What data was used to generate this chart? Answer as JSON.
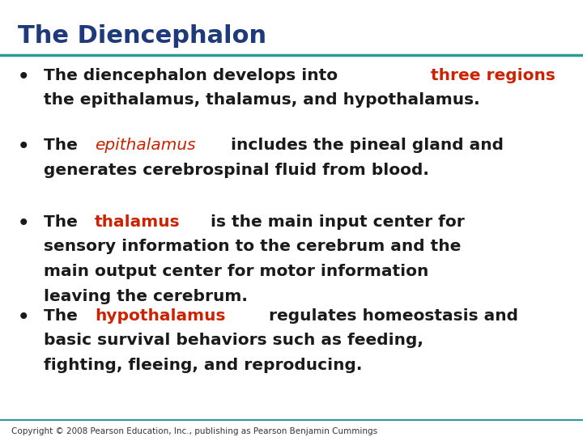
{
  "title": "The Diencephalon",
  "title_color": "#1F3A7A",
  "title_fontsize": 22,
  "line_color": "#2E9B9B",
  "bg_color": "#FFFFFF",
  "bullet_color": "#1a1a1a",
  "bullet_fontsize": 14.5,
  "copyright": "Copyright © 2008 Pearson Education, Inc., publishing as Pearson Benjamin Cummings",
  "copyright_fontsize": 7.5,
  "bullets": [
    {
      "segments": [
        {
          "text": "The diencephalon develops into ",
          "color": "#1a1a1a",
          "bold": true,
          "italic": false
        },
        {
          "text": "three regions",
          "color": "#CC2200",
          "bold": true,
          "italic": false
        },
        {
          "text": ":",
          "color": "#1a1a1a",
          "bold": true,
          "italic": false
        },
        {
          "text": "\nthe epithalamus, thalamus, and hypothalamus.",
          "color": "#1a1a1a",
          "bold": true,
          "italic": false
        }
      ]
    },
    {
      "segments": [
        {
          "text": "The ",
          "color": "#1a1a1a",
          "bold": true,
          "italic": false
        },
        {
          "text": "epithalamus",
          "color": "#CC2200",
          "bold": false,
          "italic": true
        },
        {
          "text": " includes the pineal gland and\ngenerates cerebrospinal fluid from blood.",
          "color": "#1a1a1a",
          "bold": true,
          "italic": false
        }
      ]
    },
    {
      "segments": [
        {
          "text": "The ",
          "color": "#1a1a1a",
          "bold": true,
          "italic": false
        },
        {
          "text": "thalamus",
          "color": "#CC2200",
          "bold": true,
          "italic": false
        },
        {
          "text": " is the main input center for\nsensory information to the cerebrum and the\nmain output center for motor information\nleaving the cerebrum.",
          "color": "#1a1a1a",
          "bold": true,
          "italic": false
        }
      ]
    },
    {
      "segments": [
        {
          "text": "The ",
          "color": "#1a1a1a",
          "bold": true,
          "italic": false
        },
        {
          "text": "hypothalamus",
          "color": "#CC2200",
          "bold": true,
          "italic": false
        },
        {
          "text": " regulates homeostasis and\nbasic survival behaviors such as feeding,\nfighting, fleeing, and reproducing.",
          "color": "#1a1a1a",
          "bold": true,
          "italic": false
        }
      ]
    }
  ]
}
